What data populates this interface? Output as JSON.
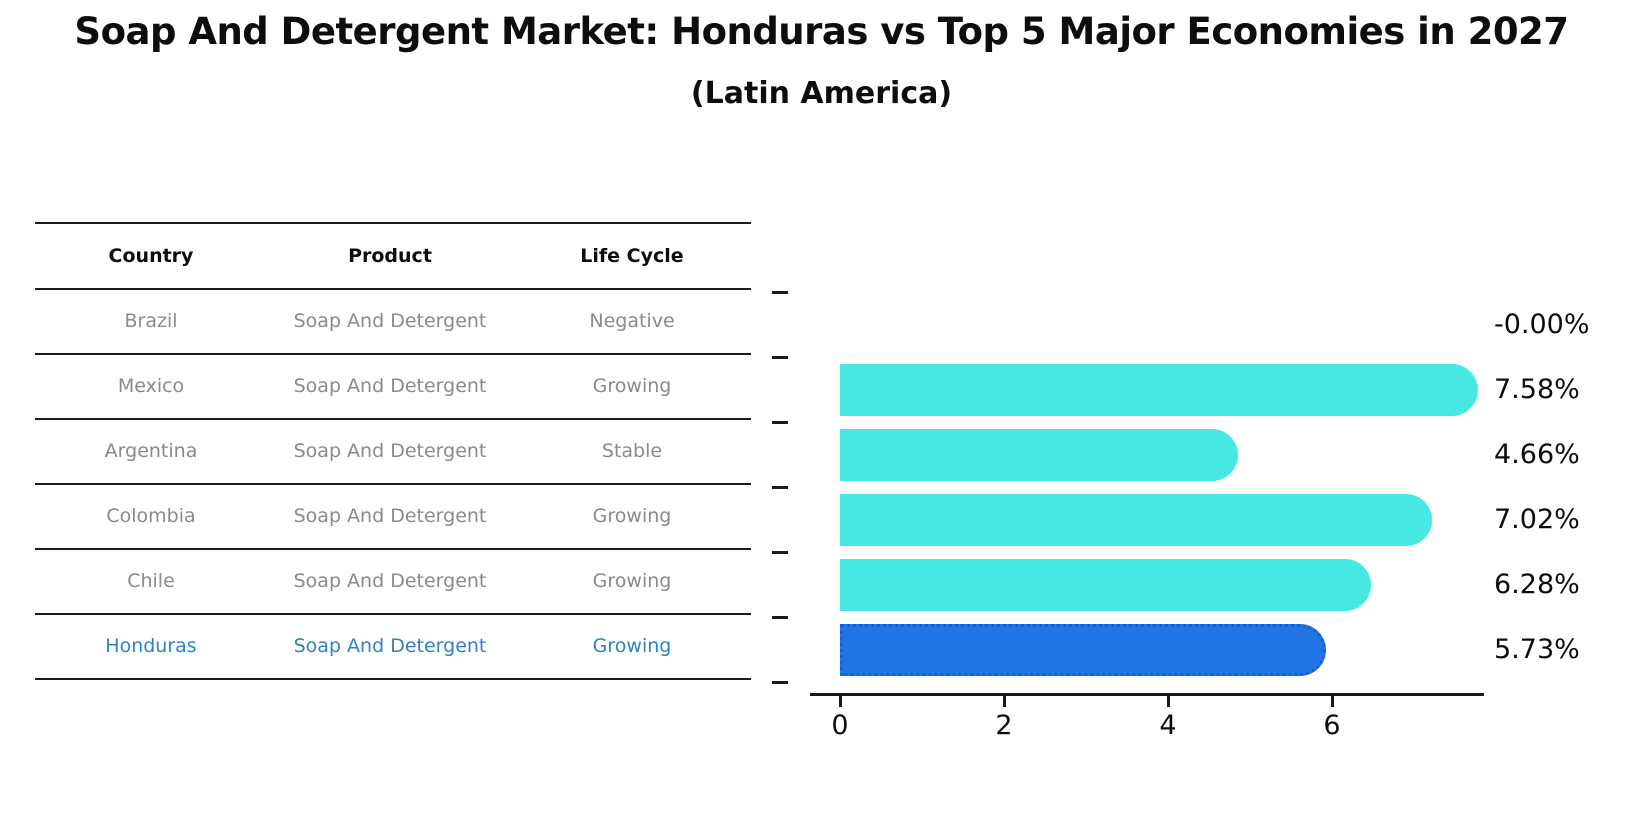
{
  "title": "Soap And Detergent Market: Honduras vs Top 5 Major Economies in 2027",
  "subtitle": "(Latin America)",
  "table": {
    "headers": [
      "Country",
      "Product",
      "Life Cycle"
    ],
    "rows": [
      {
        "country": "Brazil",
        "product": "Soap And Detergent",
        "life_cycle": "Negative",
        "highlight": false
      },
      {
        "country": "Mexico",
        "product": "Soap And Detergent",
        "life_cycle": "Growing",
        "highlight": false
      },
      {
        "country": "Argentina",
        "product": "Soap And Detergent",
        "life_cycle": "Stable",
        "highlight": false
      },
      {
        "country": "Colombia",
        "product": "Soap And Detergent",
        "life_cycle": "Growing",
        "highlight": false
      },
      {
        "country": "Chile",
        "product": "Soap And Detergent",
        "life_cycle": "Growing",
        "highlight": false
      },
      {
        "country": "Honduras",
        "product": "Soap And Detergent",
        "life_cycle": "Growing",
        "highlight": true
      }
    ]
  },
  "chart_data": {
    "type": "bar",
    "orientation": "horizontal",
    "title": "",
    "xlabel": "",
    "ylabel": "",
    "categories": [
      "Brazil",
      "Mexico",
      "Argentina",
      "Colombia",
      "Chile",
      "Honduras"
    ],
    "values": [
      -0.0,
      7.58,
      4.66,
      7.02,
      6.28,
      5.73
    ],
    "value_labels": [
      "-0.00%",
      "7.58%",
      "4.66%",
      "7.02%",
      "6.28%",
      "5.73%"
    ],
    "highlight_index": 5,
    "xticks": [
      0,
      2,
      4,
      6
    ],
    "xlim": [
      0,
      7.9
    ],
    "grid": false,
    "legend": false,
    "bar_color": "#46e8e1",
    "highlight_bar_color": "#2176e6",
    "highlight_text_color": "#3181c4",
    "table_text_color": "#8a8a8a",
    "axis_color": "#1a1a1a"
  }
}
